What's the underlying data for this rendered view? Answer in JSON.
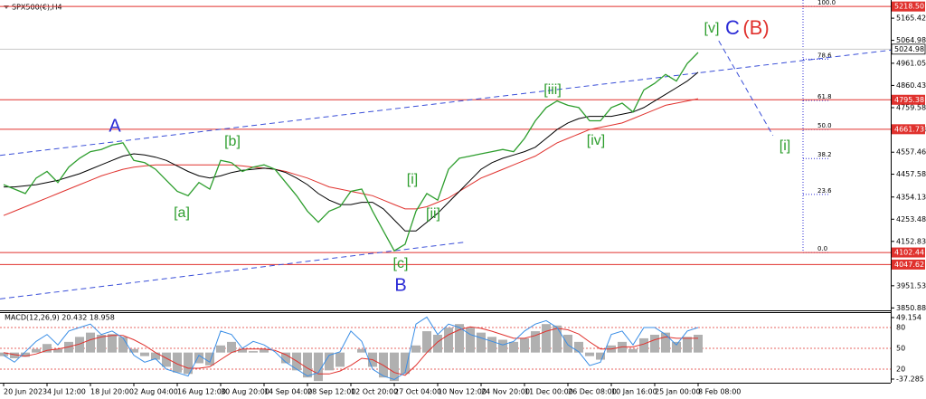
{
  "chart_data": {
    "type": "line",
    "title": "SPX500(€),H4",
    "x": [
      0,
      1,
      2,
      3,
      4,
      5,
      6,
      7,
      8,
      9,
      10,
      11,
      12,
      13,
      14,
      15,
      16,
      17,
      18,
      19,
      20,
      21,
      22,
      23,
      24,
      25,
      26,
      27,
      28,
      29,
      30,
      31,
      32,
      33,
      34,
      35,
      36,
      37,
      38,
      39,
      40,
      41,
      42,
      43,
      44,
      45,
      46,
      47,
      48,
      49,
      50,
      51,
      52,
      53,
      54,
      55,
      56,
      57,
      58,
      59,
      60,
      61,
      62,
      63,
      64
    ],
    "series": [
      {
        "color": "#2e9e2e",
        "values": [
          4410,
          4390,
          4370,
          4440,
          4470,
          4420,
          4490,
          4530,
          4560,
          4570,
          4590,
          4600,
          4520,
          4510,
          4480,
          4430,
          4380,
          4360,
          4420,
          4390,
          4520,
          4510,
          4470,
          4490,
          4500,
          4480,
          4420,
          4360,
          4290,
          4240,
          4290,
          4310,
          4380,
          4390,
          4290,
          4200,
          4110,
          4140,
          4290,
          4370,
          4340,
          4480,
          4530,
          4540,
          4550,
          4560,
          4570,
          4560,
          4620,
          4700,
          4760,
          4790,
          4770,
          4760,
          4700,
          4700,
          4760,
          4780,
          4740,
          4840,
          4870,
          4910,
          4880,
          4960,
          5010
        ]
      },
      {
        "color": "#000000",
        "values": [
          4400,
          4400,
          4405,
          4410,
          4420,
          4430,
          4445,
          4460,
          4480,
          4500,
          4520,
          4540,
          4550,
          4545,
          4535,
          4520,
          4495,
          4470,
          4450,
          4440,
          4450,
          4465,
          4475,
          4480,
          4485,
          4480,
          4465,
          4440,
          4410,
          4370,
          4340,
          4320,
          4320,
          4330,
          4330,
          4300,
          4250,
          4200,
          4200,
          4240,
          4280,
          4330,
          4380,
          4430,
          4480,
          4510,
          4530,
          4545,
          4560,
          4580,
          4620,
          4660,
          4690,
          4710,
          4720,
          4720,
          4720,
          4730,
          4740,
          4760,
          4790,
          4820,
          4850,
          4880,
          4920
        ]
      },
      {
        "color": "#e0322e",
        "values": [
          4270,
          4290,
          4310,
          4330,
          4350,
          4370,
          4390,
          4410,
          4430,
          4450,
          4465,
          4480,
          4490,
          4495,
          4500,
          4500,
          4500,
          4500,
          4500,
          4500,
          4500,
          4500,
          4495,
          4490,
          4485,
          4480,
          4470,
          4455,
          4440,
          4420,
          4400,
          4390,
          4380,
          4370,
          4360,
          4340,
          4320,
          4300,
          4300,
          4310,
          4330,
          4350,
          4380,
          4410,
          4440,
          4460,
          4480,
          4500,
          4520,
          4540,
          4570,
          4600,
          4620,
          4640,
          4660,
          4670,
          4680,
          4690,
          4710,
          4730,
          4750,
          4770,
          4780,
          4790,
          4800
        ]
      }
    ],
    "xlim": [
      0,
      81.75
    ],
    "ylim": [
      3840,
      5248
    ],
    "yticks": [
      5165.42,
      5064.98,
      4961.05,
      4860.43,
      4759.58,
      4658.38,
      4557.46,
      4457.58,
      4354.13,
      4253.48,
      4152.83,
      3951.53,
      3850.88
    ],
    "xticks": [
      {
        "value": 0,
        "label": "20 Jun 2023"
      },
      {
        "value": 4,
        "label": "4 Jul 12:00"
      },
      {
        "value": 8,
        "label": "18 Jul 20:00"
      },
      {
        "value": 12,
        "label": "2 Aug 04:00"
      },
      {
        "value": 16,
        "label": "16 Aug 12:00"
      },
      {
        "value": 20,
        "label": "30 Aug 20:00"
      },
      {
        "value": 24,
        "label": "14 Sep 04:00"
      },
      {
        "value": 28,
        "label": "28 Sep 12:00"
      },
      {
        "value": 32,
        "label": "12 Oct 20:00"
      },
      {
        "value": 36,
        "label": "27 Oct 04:00"
      },
      {
        "value": 40,
        "label": "10 Nov 12:00"
      },
      {
        "value": 44,
        "label": "24 Nov 20:00"
      },
      {
        "value": 48,
        "label": "11 Dec 00:00"
      },
      {
        "value": 52,
        "label": "26 Dec 08:00"
      },
      {
        "value": 56,
        "label": "10 Jan 16:00"
      },
      {
        "value": 60,
        "label": "25 Jan 00:00"
      },
      {
        "value": 64,
        "label": "8 Feb 08:00"
      }
    ],
    "levels": {
      "color": "#e0322e",
      "values": [
        {
          "value": 5218.5,
          "label": "5218.50"
        },
        4795.38,
        4661.73,
        4102.44,
        4047.62
      ]
    },
    "current_price": 5024.98,
    "trendlines": {
      "color": "#3a4fd8",
      "lines": [
        {
          "x": [
            -0.33,
            84.25
          ],
          "y": [
            4543,
            5035
          ]
        },
        {
          "x": [
            -0.33,
            42.6
          ],
          "y": [
            3892,
            4150
          ]
        },
        {
          "x": [
            65.9,
            70.9
          ],
          "y": [
            5063,
            4633
          ]
        }
      ]
    },
    "fib": {
      "range": [
        4102.44,
        5218.5
      ],
      "levels": [
        {
          "value": 100,
          "label": "100.0"
        },
        78.6,
        61.8,
        {
          "value": 50,
          "label": "50.0"
        },
        38.2,
        23.6,
        {
          "value": 0,
          "label": "0.0"
        }
      ]
    },
    "annotations": [
      {
        "text": "A",
        "color": "#2b2bd6"
      },
      {
        "text": "[a]",
        "color": "#2e9e2e"
      },
      {
        "text": "[b]",
        "color": "#2e9e2e"
      },
      {
        "text": "[c]",
        "color": "#2e9e2e"
      },
      {
        "text": "B",
        "color": "#2b2bd6"
      },
      {
        "text": "[i]",
        "color": "#2e9e2e"
      },
      {
        "text": "[ii]",
        "color": "#2e9e2e"
      },
      {
        "text": "[iii]",
        "color": "#2e9e2e"
      },
      {
        "text": "[iv]",
        "color": "#2e9e2e"
      },
      {
        "text": "[v]",
        "color": "#2e9e2e"
      },
      {
        "text": "C",
        "color": "#2b2bd6"
      },
      {
        "text": "(B)",
        "color": "#e0322e"
      },
      {
        "text": "[i]",
        "color": "#2e9e2e"
      }
    ],
    "indicator": {
      "title": "MACD(12,26,9) 20.432 18.958",
      "ylim": [
        -37.285,
        49.154
      ],
      "yticks": [
        49.154,
        -37.285
      ],
      "y2lim": [
        0,
        100
      ],
      "y2ticks": [
        80,
        50,
        20
      ],
      "series": [
        {
          "color": "#b0b0b0",
          "values": [
            -5,
            -8,
            -6,
            5,
            12,
            5,
            15,
            22,
            28,
            25,
            26,
            22,
            5,
            -5,
            -10,
            -20,
            -28,
            -30,
            -15,
            -18,
            10,
            15,
            5,
            2,
            5,
            0,
            -15,
            -25,
            -35,
            -40,
            -25,
            -20,
            0,
            5,
            -20,
            -35,
            -40,
            -30,
            10,
            30,
            25,
            35,
            40,
            35,
            28,
            22,
            18,
            15,
            20,
            30,
            40,
            38,
            25,
            15,
            -5,
            -10,
            10,
            15,
            5,
            20,
            25,
            28,
            15,
            22,
            25
          ]
        },
        {
          "color": "#e0322e",
          "values": [
            0,
            -3,
            -5,
            -2,
            3,
            5,
            8,
            12,
            18,
            22,
            24,
            24,
            18,
            10,
            0,
            -8,
            -16,
            -22,
            -22,
            -20,
            -10,
            0,
            5,
            5,
            5,
            3,
            -3,
            -12,
            -22,
            -30,
            -30,
            -26,
            -18,
            -8,
            -10,
            -18,
            -28,
            -32,
            -18,
            0,
            15,
            25,
            32,
            36,
            34,
            30,
            25,
            20,
            20,
            24,
            30,
            34,
            32,
            26,
            15,
            5,
            5,
            8,
            8,
            12,
            18,
            22,
            20,
            20,
            20
          ]
        },
        {
          "color": "#3a8ee6",
          "axis": "y2",
          "values": [
            40,
            30,
            45,
            60,
            70,
            55,
            75,
            80,
            85,
            70,
            75,
            65,
            40,
            30,
            35,
            20,
            15,
            10,
            40,
            30,
            75,
            70,
            50,
            60,
            55,
            45,
            30,
            20,
            10,
            15,
            40,
            45,
            75,
            60,
            20,
            10,
            5,
            15,
            85,
            95,
            70,
            85,
            80,
            70,
            65,
            60,
            55,
            60,
            75,
            85,
            90,
            80,
            55,
            45,
            25,
            30,
            70,
            75,
            55,
            80,
            80,
            70,
            55,
            75,
            80
          ]
        }
      ]
    }
  }
}
